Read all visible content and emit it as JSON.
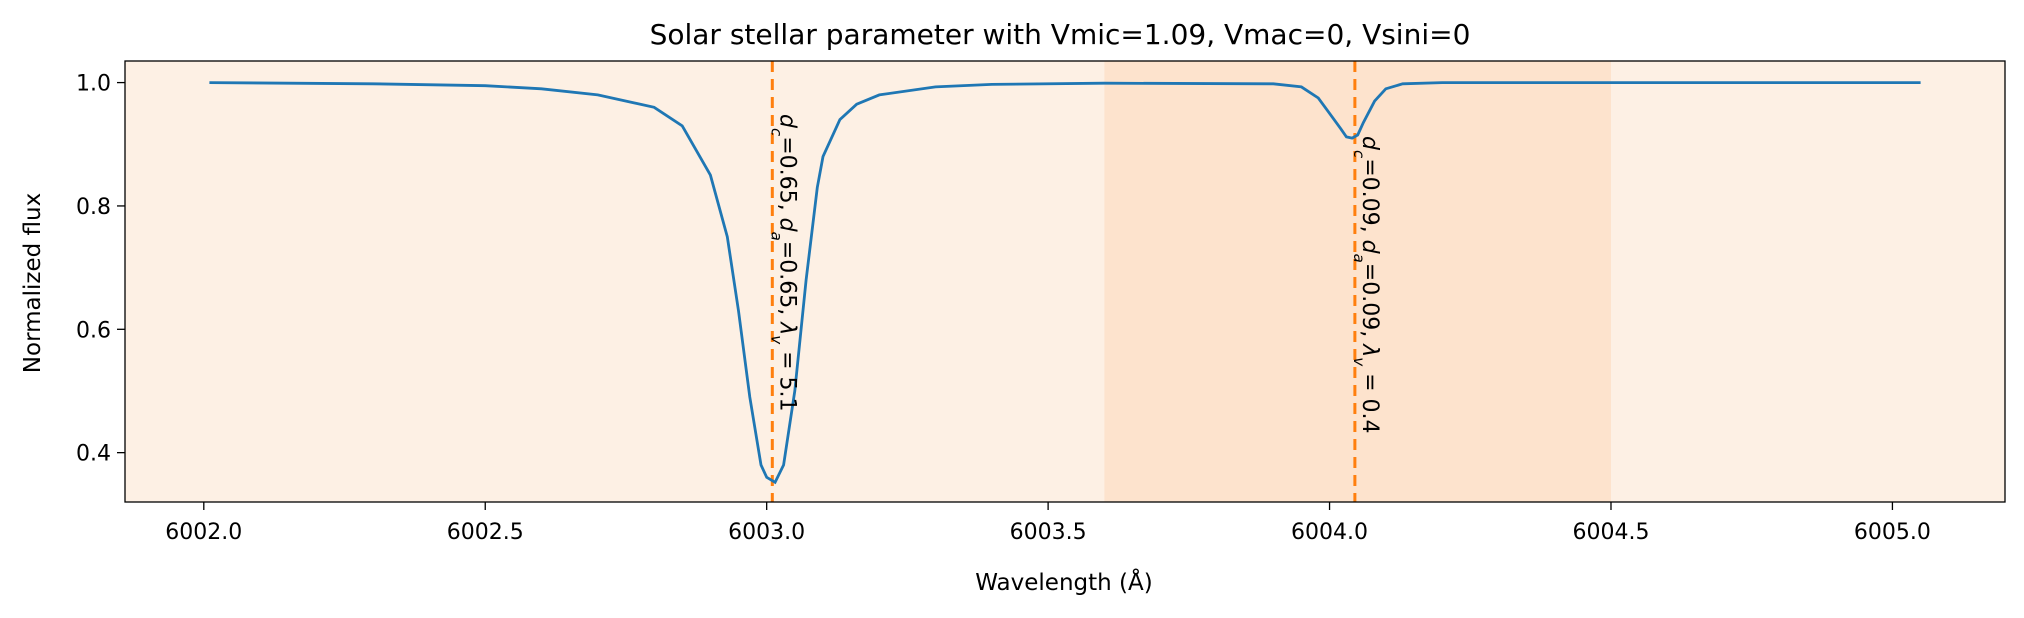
{
  "chart_data": {
    "type": "line",
    "title": "Solar stellar parameter with Vmic=1.09, Vmac=0, Vsini=0",
    "xlabel": "Wavelength (Å)",
    "ylabel": "Normalized flux",
    "xlim": [
      6001.86,
      6005.2
    ],
    "ylim": [
      0.32,
      1.035
    ],
    "xticks": [
      6002.0,
      6002.5,
      6003.0,
      6003.5,
      6004.0,
      6004.5,
      6005.0
    ],
    "xtick_labels": [
      "6002.0",
      "6002.5",
      "6003.0",
      "6003.5",
      "6004.0",
      "6004.5",
      "6005.0"
    ],
    "yticks": [
      0.4,
      0.6,
      0.8,
      1.0
    ],
    "ytick_labels": [
      "0.4",
      "0.6",
      "0.8",
      "1.0"
    ],
    "grid": false,
    "colors": {
      "background": "#fdf0e4",
      "shaded_region": "#fde3cd",
      "spectrum": "#1f77b4",
      "line_marker": "#ff7f0e"
    },
    "shaded_region": [
      6003.6,
      6004.5
    ],
    "series": [
      {
        "x": [
          6002.01,
          6002.3,
          6002.5,
          6002.6,
          6002.7,
          6002.8,
          6002.85,
          6002.9,
          6002.93,
          6002.95,
          6002.97,
          6002.99,
          6003.0,
          6003.015,
          6003.03,
          6003.05,
          6003.07,
          6003.09,
          6003.1,
          6003.13,
          6003.16,
          6003.2,
          6003.3,
          6003.4,
          6003.6,
          6003.9,
          6003.95,
          6003.98,
          6004.0,
          6004.02,
          6004.03,
          6004.04,
          6004.05,
          6004.06,
          6004.08,
          6004.1,
          6004.13,
          6004.2,
          6004.5,
          6005.05
        ],
        "y": [
          1.0,
          0.998,
          0.995,
          0.99,
          0.98,
          0.96,
          0.93,
          0.85,
          0.75,
          0.63,
          0.49,
          0.38,
          0.36,
          0.352,
          0.38,
          0.5,
          0.68,
          0.83,
          0.88,
          0.94,
          0.965,
          0.98,
          0.993,
          0.997,
          0.999,
          0.998,
          0.993,
          0.975,
          0.95,
          0.925,
          0.912,
          0.91,
          0.915,
          0.935,
          0.97,
          0.99,
          0.998,
          1.0,
          1.0,
          1.0
        ]
      }
    ],
    "vlines": [
      {
        "x": 6003.01,
        "label": "dc=0.65, da=0.65, λv=5.1",
        "parts": {
          "dc": "0.65",
          "da": "0.65",
          "lv": "5.1"
        }
      },
      {
        "x": 6004.045,
        "label": "dc=0.09, da=0.09, λv=0.4",
        "parts": {
          "dc": "0.09",
          "da": "0.09",
          "lv": "0.4"
        }
      }
    ]
  }
}
